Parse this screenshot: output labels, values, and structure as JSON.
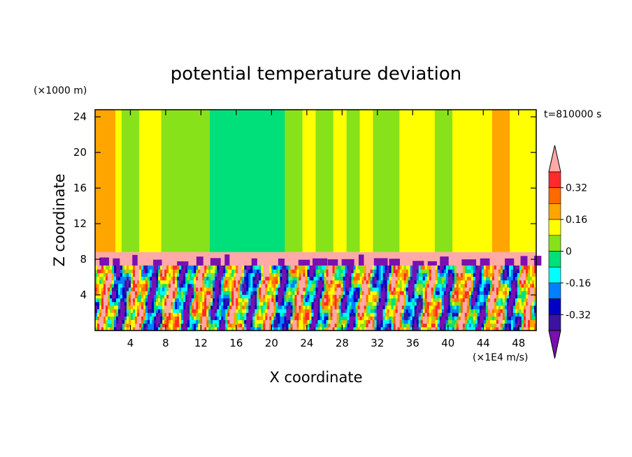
{
  "chart_data": {
    "type": "heatmap",
    "title": "potential temperature deviation",
    "xlabel": "X coordinate",
    "ylabel": "Z coordinate",
    "x_unit": "(×1E4 m/s)",
    "y_unit": "(×1000 m)",
    "time_label": "t=810000 s",
    "xlim": [
      0,
      50
    ],
    "ylim": [
      0,
      24.8
    ],
    "x_ticks": [
      "4",
      "8",
      "12",
      "16",
      "20",
      "24",
      "28",
      "32",
      "36",
      "40",
      "44",
      "48"
    ],
    "x_tick_values": [
      4,
      8,
      12,
      16,
      20,
      24,
      28,
      32,
      36,
      40,
      44,
      48
    ],
    "y_ticks": [
      "4",
      "8",
      "12",
      "16",
      "20",
      "24"
    ],
    "y_tick_values": [
      4,
      8,
      12,
      16,
      20,
      24
    ],
    "colorbar": {
      "levels": [
        -0.4,
        -0.32,
        -0.24,
        -0.16,
        -0.08,
        0,
        0.08,
        0.16,
        0.24,
        0.32,
        0.4
      ],
      "labels": [
        "0.32",
        "0.16",
        "0",
        "-0.16",
        "-0.32"
      ],
      "label_values": [
        0.32,
        0.16,
        0,
        -0.16,
        -0.32
      ],
      "colors_top_to_bottom": [
        "#ffaaa8",
        "#ff2a2a",
        "#ff6a00",
        "#ffa500",
        "#ffff00",
        "#88e21a",
        "#00e07a",
        "#00ffff",
        "#0080ff",
        "#0000c8",
        "#3a14a0",
        "#7a10b0"
      ],
      "extend": "both"
    },
    "upper_layer_columns": [
      {
        "x0": 0.0,
        "x1": 2.3,
        "v": 0.18
      },
      {
        "x0": 2.3,
        "x1": 3.0,
        "v": 0.1
      },
      {
        "x0": 3.0,
        "x1": 5.0,
        "v": 0.03
      },
      {
        "x0": 5.0,
        "x1": 7.5,
        "v": 0.1
      },
      {
        "x0": 7.5,
        "x1": 13.0,
        "v": 0.03
      },
      {
        "x0": 13.0,
        "x1": 19.0,
        "v": -0.05
      },
      {
        "x0": 19.0,
        "x1": 21.5,
        "v": -0.06
      },
      {
        "x0": 21.5,
        "x1": 23.5,
        "v": 0.03
      },
      {
        "x0": 23.5,
        "x1": 25.0,
        "v": 0.12
      },
      {
        "x0": 25.0,
        "x1": 27.0,
        "v": 0.03
      },
      {
        "x0": 27.0,
        "x1": 28.5,
        "v": 0.1
      },
      {
        "x0": 28.5,
        "x1": 30.0,
        "v": 0.03
      },
      {
        "x0": 30.0,
        "x1": 31.5,
        "v": 0.12
      },
      {
        "x0": 31.5,
        "x1": 34.5,
        "v": 0.03
      },
      {
        "x0": 34.5,
        "x1": 36.0,
        "v": 0.12
      },
      {
        "x0": 36.0,
        "x1": 38.5,
        "v": 0.1
      },
      {
        "x0": 38.5,
        "x1": 40.5,
        "v": 0.03
      },
      {
        "x0": 40.5,
        "x1": 43.0,
        "v": 0.1
      },
      {
        "x0": 43.0,
        "x1": 45.0,
        "v": 0.12
      },
      {
        "x0": 45.0,
        "x1": 47.0,
        "v": 0.2
      },
      {
        "x0": 47.0,
        "x1": 50.0,
        "v": 0.1
      }
    ],
    "inversion_layer": {
      "z0": 7.3,
      "z1": 8.8,
      "v": 0.45
    },
    "boundary_layer": {
      "z0": 0,
      "z1": 7.3,
      "note": "turbulent mixed values between -0.4 and 0.4"
    }
  }
}
